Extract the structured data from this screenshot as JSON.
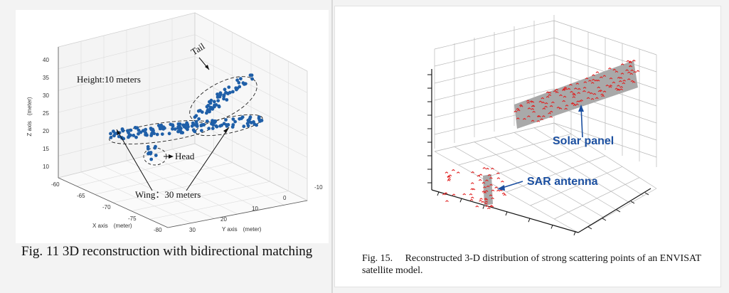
{
  "fig11": {
    "caption": "Fig. 11 3D reconstruction with bidirectional matching",
    "z_axis_label": "Z axis　(meter)",
    "x_axis_label": "X axis　(meter)",
    "y_axis_label": "Y axis　(meter)",
    "z_ticks": [
      "40",
      "35",
      "30",
      "25",
      "20",
      "15",
      "10"
    ],
    "x_ticks": [
      "-60",
      "-65",
      "-70",
      "-75",
      "-80"
    ],
    "y_ticks": [
      "-10",
      "0",
      "10",
      "20",
      "30"
    ],
    "annotations": {
      "height": "Height:10 meters",
      "tail": "Tail",
      "head": "Head",
      "wing": "Wing：30 meters"
    },
    "point_color": "#1f5fa8"
  },
  "fig15": {
    "caption": "Fig. 15.  Reconstructed 3-D distribution of strong scattering points of an ENVISAT satellite model.",
    "labels": {
      "solar_panel": "Solar panel",
      "sar_antenna": "SAR antenna"
    },
    "label_color": "#1b4fa0",
    "point_color": "#e02020"
  }
}
